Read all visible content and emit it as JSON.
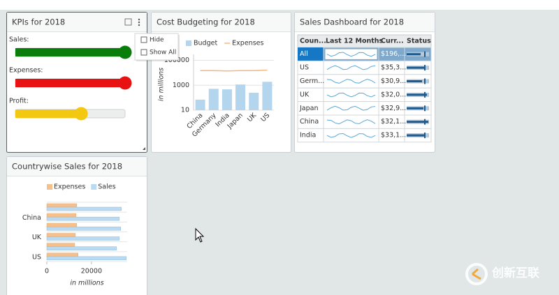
{
  "kpi": {
    "title": "KPIs for 2018",
    "range": [
      0,
      100
    ],
    "gauges": [
      {
        "label": "Sales:",
        "value": 100,
        "color": "#0a7d0a"
      },
      {
        "label": "Expenses:",
        "value": 100,
        "color": "#e81212"
      },
      {
        "label": "Profit:",
        "value": 60,
        "color": "#f2c811"
      }
    ]
  },
  "menu": {
    "items": [
      "Hide",
      "Show All"
    ]
  },
  "chart_data": [
    {
      "type": "bar",
      "title": "Cost Budgeting for 2018",
      "categories": [
        "China",
        "Germany",
        "India",
        "Japan",
        "UK",
        "US"
      ],
      "series": [
        {
          "name": "Budget",
          "type": "bar",
          "color": "#b3d5ee",
          "values": [
            70,
            520,
            470,
            1150,
            250,
            1900
          ]
        },
        {
          "name": "Expenses",
          "type": "line",
          "color": "#f5b87a",
          "values": [
            15000,
            15000,
            14000,
            15000,
            15000,
            16500
          ]
        }
      ],
      "log_y": true,
      "ylim": [
        10,
        300000
      ],
      "yticks": [
        10,
        1000,
        100000
      ],
      "ylabel": "in millions",
      "grid": true
    },
    {
      "type": "barh",
      "title": "Countrywise Sales for 2018",
      "categories": [
        null,
        "China",
        null,
        "UK",
        null,
        "US"
      ],
      "series": [
        {
          "name": "Expenses",
          "color": "#f5c08e",
          "values": [
            13400,
            13100,
            13400,
            12800,
            12500,
            14000
          ]
        },
        {
          "name": "Sales",
          "color": "#b9daf0",
          "values": [
            33400,
            32500,
            33100,
            32500,
            31250,
            35600
          ]
        }
      ],
      "xlim": [
        0,
        36000
      ],
      "xticks": [
        0,
        20000
      ],
      "xlabel": "in millions",
      "grid": true
    }
  ],
  "sales_table": {
    "title": "Sales Dashboard for 2018",
    "header": [
      "Coun...",
      "Last 12 Months",
      "Curr...",
      "Status"
    ],
    "rows": [
      [
        "All",
        "$196,..."
      ],
      [
        "US",
        "$35,3..."
      ],
      [
        "Germ...",
        "$30,9..."
      ],
      [
        "UK",
        "$32,0..."
      ],
      [
        "Japan",
        "$32,9..."
      ],
      [
        "China",
        "$32,1..."
      ],
      [
        "India",
        "$33,1..."
      ]
    ]
  },
  "watermark": "创新互联"
}
